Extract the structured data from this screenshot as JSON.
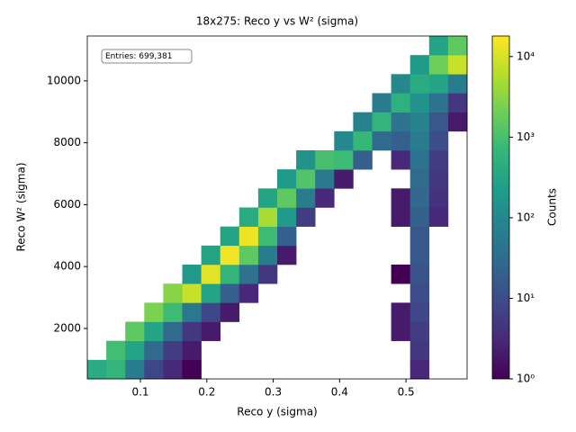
{
  "chart_data": {
    "type": "hist2d",
    "title": "18x275: Reco y vs W² (sigma)",
    "x_label": "Reco y (sigma)",
    "y_label": "Reco W² (sigma)",
    "annotation": "Entries: 699,381",
    "colorbar_label": "Counts",
    "colormap": "viridis",
    "log_color": true,
    "xlim": [
      0.02,
      0.592
    ],
    "ylim": [
      370,
      11450
    ],
    "xticks": [
      0.1,
      0.2,
      0.3,
      0.4,
      0.5
    ],
    "yticks": [
      2000,
      4000,
      6000,
      8000,
      10000
    ],
    "clim": [
      1,
      18000
    ],
    "cticks": [
      {
        "value": 1,
        "label": "10⁰"
      },
      {
        "value": 10,
        "label": "10¹"
      },
      {
        "value": 100,
        "label": "10²"
      },
      {
        "value": 1000,
        "label": "10³"
      },
      {
        "value": 10000,
        "label": "10⁴"
      }
    ],
    "xbins": [
      0.02,
      0.0486,
      0.0772,
      0.1058,
      0.1344,
      0.163,
      0.1916,
      0.2202,
      0.2488,
      0.2774,
      0.306,
      0.3346,
      0.3632,
      0.3918,
      0.4204,
      0.449,
      0.4776,
      0.5062,
      0.5348,
      0.5634,
      0.592
    ],
    "ybins": [
      370,
      985.6,
      1601.1,
      2216.7,
      2832.2,
      3447.8,
      4063.3,
      4678.9,
      5294.4,
      5910,
      6525.6,
      7141.1,
      7756.7,
      8372.2,
      8987.8,
      9603.3,
      10218.9,
      10834.4,
      11450
    ],
    "z": [
      [
        400,
        600,
        60,
        8,
        3,
        1,
        0,
        0,
        0,
        0,
        0,
        0,
        0,
        0,
        0,
        0,
        0,
        3,
        0,
        0
      ],
      [
        0,
        900,
        300,
        30,
        6,
        2,
        0,
        0,
        0,
        0,
        0,
        0,
        0,
        0,
        0,
        0,
        0,
        5,
        0,
        0
      ],
      [
        0,
        0,
        1500,
        300,
        30,
        5,
        2,
        0,
        0,
        0,
        0,
        0,
        0,
        0,
        0,
        0,
        2,
        6,
        0,
        0
      ],
      [
        0,
        0,
        0,
        2500,
        800,
        50,
        8,
        2,
        0,
        0,
        0,
        0,
        0,
        0,
        0,
        0,
        2,
        8,
        0,
        0
      ],
      [
        0,
        0,
        0,
        0,
        3000,
        8000,
        300,
        20,
        3,
        0,
        0,
        0,
        0,
        0,
        0,
        0,
        0,
        10,
        0,
        0
      ],
      [
        0,
        0,
        0,
        0,
        0,
        200,
        12000,
        600,
        40,
        5,
        0,
        0,
        0,
        0,
        0,
        0,
        1,
        12,
        0,
        0
      ],
      [
        0,
        0,
        0,
        0,
        0,
        0,
        300,
        15000,
        1500,
        60,
        2,
        0,
        0,
        0,
        0,
        0,
        0,
        15,
        0,
        0
      ],
      [
        0,
        0,
        0,
        0,
        0,
        0,
        0,
        300,
        14000,
        800,
        20,
        0,
        0,
        0,
        0,
        0,
        0,
        15,
        0,
        0
      ],
      [
        0,
        0,
        0,
        0,
        0,
        0,
        0,
        0,
        400,
        5000,
        200,
        6,
        0,
        0,
        0,
        0,
        2,
        20,
        3,
        0
      ],
      [
        0,
        0,
        0,
        0,
        0,
        0,
        0,
        0,
        0,
        300,
        1500,
        60,
        3,
        0,
        0,
        0,
        2,
        25,
        4,
        0
      ],
      [
        0,
        0,
        0,
        0,
        0,
        0,
        0,
        0,
        0,
        0,
        200,
        1200,
        50,
        2,
        0,
        0,
        0,
        30,
        5,
        0
      ],
      [
        0,
        0,
        0,
        0,
        0,
        0,
        0,
        0,
        0,
        0,
        0,
        150,
        1000,
        800,
        20,
        0,
        3,
        40,
        6,
        0
      ],
      [
        0,
        0,
        0,
        0,
        0,
        0,
        0,
        0,
        0,
        0,
        0,
        0,
        0,
        100,
        700,
        30,
        20,
        60,
        10,
        0
      ],
      [
        0,
        0,
        0,
        0,
        0,
        0,
        0,
        0,
        0,
        0,
        0,
        0,
        0,
        0,
        80,
        600,
        40,
        80,
        15,
        2
      ],
      [
        0,
        0,
        0,
        0,
        0,
        0,
        0,
        0,
        0,
        0,
        0,
        0,
        0,
        0,
        0,
        60,
        500,
        150,
        40,
        5
      ],
      [
        0,
        0,
        0,
        0,
        0,
        0,
        0,
        0,
        0,
        0,
        0,
        0,
        0,
        0,
        0,
        0,
        100,
        400,
        300,
        60
      ],
      [
        0,
        0,
        0,
        0,
        0,
        0,
        0,
        0,
        0,
        0,
        0,
        0,
        0,
        0,
        0,
        0,
        0,
        200,
        2000,
        8000
      ],
      [
        0,
        0,
        0,
        0,
        0,
        0,
        0,
        0,
        0,
        0,
        0,
        0,
        0,
        0,
        0,
        0,
        0,
        0,
        300,
        1500
      ]
    ]
  }
}
